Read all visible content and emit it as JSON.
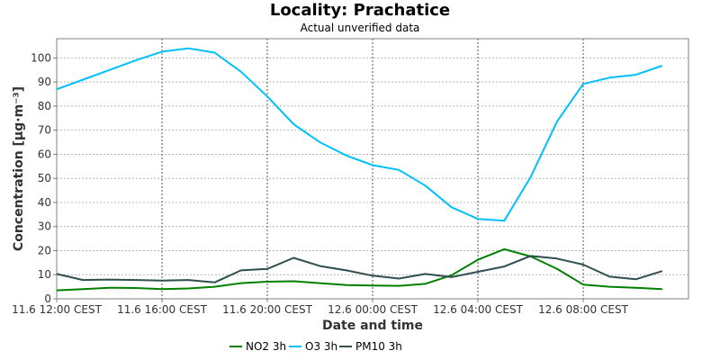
{
  "chart_data": {
    "type": "line",
    "title": "Locality: Prachatice",
    "subtitle": "Actual unverified data",
    "xlabel": "Date and time",
    "ylabel": "Concentration [µg·m⁻³]",
    "ylim": [
      0,
      108
    ],
    "y_ticks": [
      0,
      10,
      20,
      30,
      40,
      50,
      60,
      70,
      80,
      90,
      100
    ],
    "x": [
      "2024-06-11 12:00",
      "2024-06-11 13:00",
      "2024-06-11 14:00",
      "2024-06-11 15:00",
      "2024-06-11 16:00",
      "2024-06-11 17:00",
      "2024-06-11 18:00",
      "2024-06-11 19:00",
      "2024-06-11 20:00",
      "2024-06-11 21:00",
      "2024-06-11 22:00",
      "2024-06-11 23:00",
      "2024-06-12 00:00",
      "2024-06-12 01:00",
      "2024-06-12 02:00",
      "2024-06-12 03:00",
      "2024-06-12 04:00",
      "2024-06-12 05:00",
      "2024-06-12 06:00",
      "2024-06-12 07:00",
      "2024-06-12 08:00",
      "2024-06-12 09:00",
      "2024-06-12 10:00",
      "2024-06-12 11:00",
      "2024-06-12 12:00"
    ],
    "x_ticks": [
      {
        "at": "2024-06-11 12:00",
        "label": "11.6 12:00 CEST"
      },
      {
        "at": "2024-06-11 16:00",
        "label": "11.6 16:00 CEST"
      },
      {
        "at": "2024-06-11 20:00",
        "label": "11.6 20:00 CEST"
      },
      {
        "at": "2024-06-12 00:00",
        "label": "12.6 00:00 CEST"
      },
      {
        "at": "2024-06-12 04:00",
        "label": "12.6 04:00 CEST"
      },
      {
        "at": "2024-06-12 08:00",
        "label": "12.6 08:00 CEST"
      }
    ],
    "grid": true,
    "legend_position": "bottom",
    "series": [
      {
        "name": "NO2 3h",
        "color": "#008000",
        "values": [
          3.5,
          4.0,
          4.6,
          4.5,
          4.0,
          4.3,
          5.0,
          6.5,
          7.1,
          7.3,
          6.5,
          5.7,
          5.5,
          5.4,
          6.2,
          9.8,
          16.2,
          20.6,
          17.6,
          12.5,
          5.9,
          5.0,
          4.6,
          4.0,
          null
        ]
      },
      {
        "name": "O3 3h",
        "color": "#00bfff",
        "values": [
          87,
          91,
          95,
          99,
          102.6,
          104,
          102.2,
          94.3,
          84,
          72.5,
          65,
          59.5,
          55.5,
          53.5,
          47,
          38,
          33.2,
          32.4,
          50.5,
          73.5,
          89.2,
          91.8,
          93,
          96.8,
          null
        ]
      },
      {
        "name": "PM10 3h",
        "color": "#2f4f4f",
        "values": [
          10.3,
          7.8,
          8.0,
          7.8,
          7.6,
          7.8,
          6.8,
          11.8,
          12.4,
          17.0,
          13.6,
          11.8,
          9.6,
          8.4,
          10.3,
          9.0,
          11.2,
          13.4,
          17.8,
          16.7,
          14.2,
          9.2,
          8.1,
          11.5,
          null
        ]
      }
    ]
  }
}
